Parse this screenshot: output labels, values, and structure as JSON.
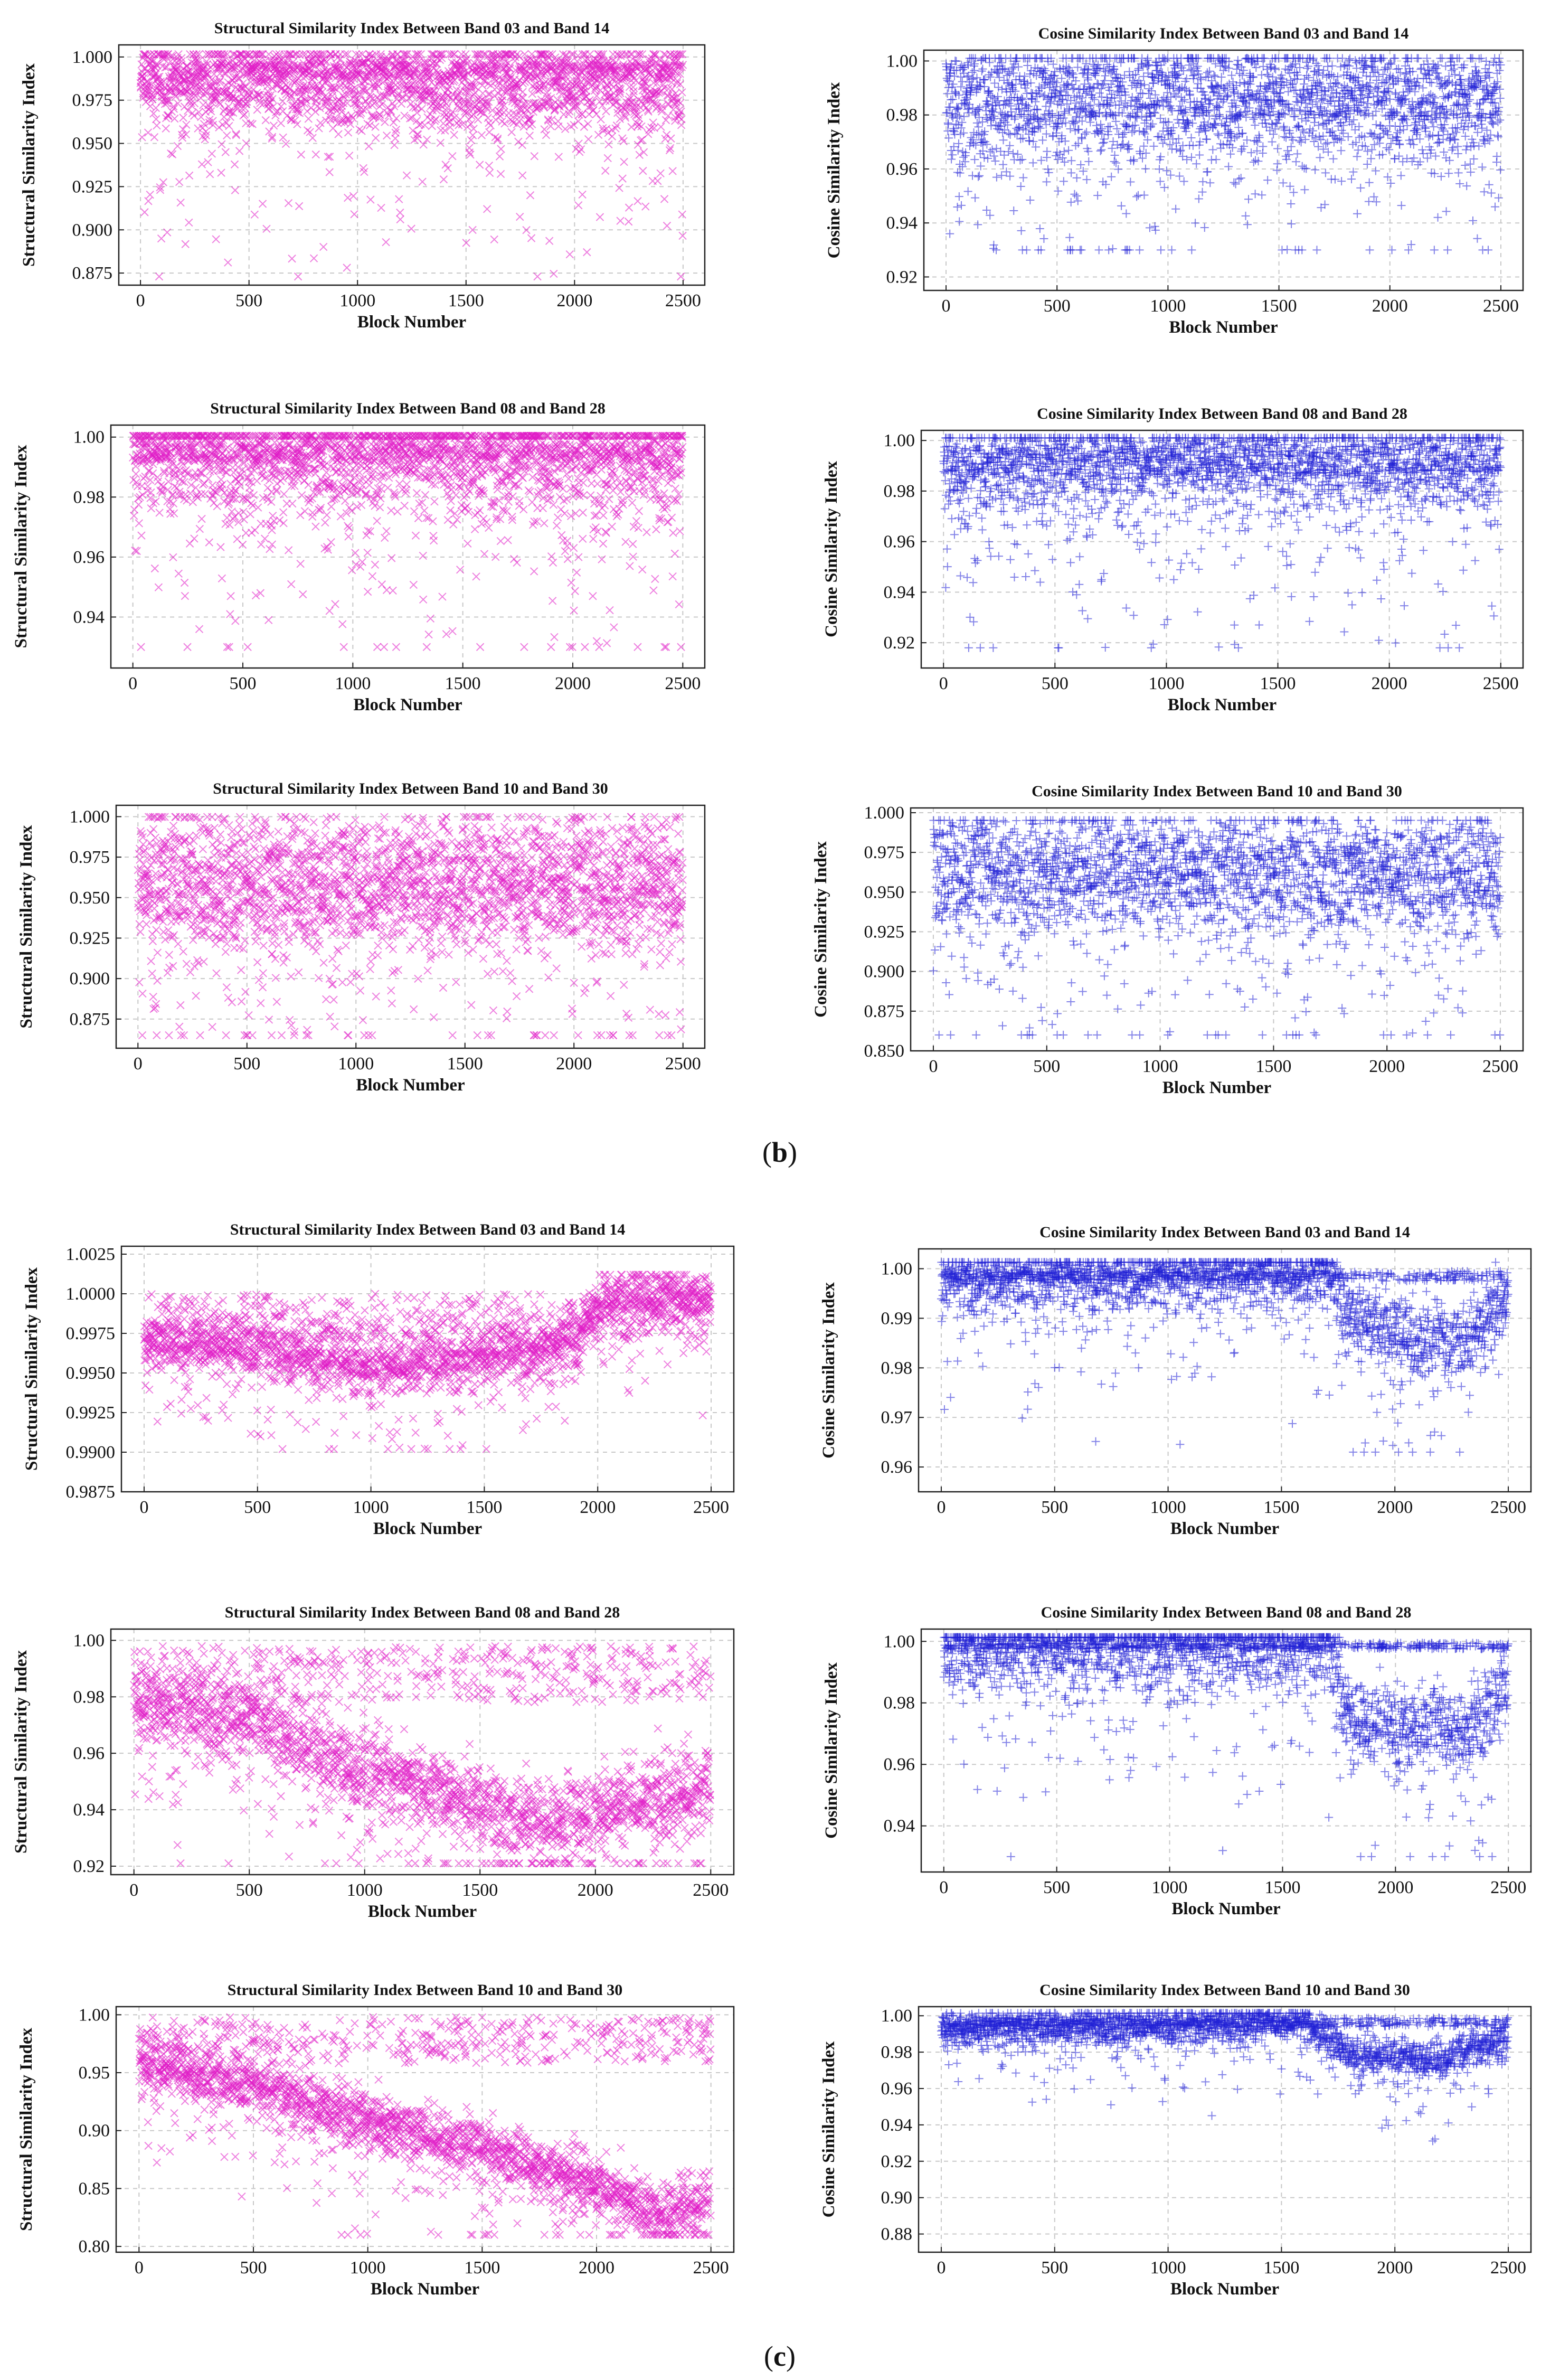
{
  "captions": {
    "b": "b",
    "c": "c"
  },
  "chart_data": [
    {
      "id": "b-ssim-03-14",
      "type": "scatter",
      "marker": "x",
      "color": "#e01cc6",
      "title": "Structural Similarity Index Between Band 03 and Band 14",
      "xlabel": "Block Number",
      "ylabel": "Structural Similarity Index",
      "xlim": [
        -100,
        2600
      ],
      "ylim": [
        0.868,
        1.007
      ],
      "xticks": [
        0,
        500,
        1000,
        1500,
        2000,
        2500
      ],
      "xtick_labels": [
        "0",
        "500",
        "1000",
        "1500",
        "2000",
        "2500"
      ],
      "yticks": [
        0.875,
        0.9,
        0.925,
        0.95,
        0.975,
        1.0
      ],
      "ytick_labels": [
        "0.875",
        "0.900",
        "0.925",
        "0.950",
        "0.975",
        "1.000"
      ],
      "grid": true,
      "n_points": 2500,
      "trend": [
        [
          0,
          0.985
        ],
        [
          2500,
          0.982
        ]
      ],
      "spread": 0.04,
      "core_top": 0.998,
      "core_band": 0.01,
      "outlier_min": 0.873
    },
    {
      "id": "b-cos-03-14",
      "type": "scatter",
      "marker": "+",
      "color": "#1f1fd6",
      "title": "Cosine Similarity Index Between Band 03 and Band 14",
      "xlabel": "Block Number",
      "ylabel": "Cosine Similarity Index",
      "xlim": [
        -100,
        2600
      ],
      "ylim": [
        0.915,
        1.004
      ],
      "xticks": [
        0,
        500,
        1000,
        1500,
        2000,
        2500
      ],
      "xtick_labels": [
        "0",
        "500",
        "1000",
        "1500",
        "2000",
        "2500"
      ],
      "yticks": [
        0.92,
        0.94,
        0.96,
        0.98,
        1.0
      ],
      "ytick_labels": [
        "0.92",
        "0.94",
        "0.96",
        "0.98",
        "1.00"
      ],
      "grid": true,
      "n_points": 2500,
      "trend": [
        [
          0,
          0.985
        ],
        [
          2500,
          0.984
        ]
      ],
      "spread": 0.035,
      "core_top": 0.999,
      "core_band": 0.02,
      "outlier_min": 0.93
    },
    {
      "id": "b-ssim-08-28",
      "type": "scatter",
      "marker": "x",
      "color": "#e01cc6",
      "title": "Structural Similarity Index Between Band 08 and Band 28",
      "xlabel": "Block Number",
      "ylabel": "Structural Similarity Index",
      "xlim": [
        -100,
        2600
      ],
      "ylim": [
        0.923,
        1.004
      ],
      "xticks": [
        0,
        500,
        1000,
        1500,
        2000,
        2500
      ],
      "xtick_labels": [
        "0",
        "500",
        "1000",
        "1500",
        "2000",
        "2500"
      ],
      "yticks": [
        0.94,
        0.96,
        0.98,
        1.0
      ],
      "ytick_labels": [
        "0.94",
        "0.96",
        "0.98",
        "1.00"
      ],
      "grid": true,
      "n_points": 2500,
      "trend": [
        [
          0,
          0.993
        ],
        [
          2500,
          0.993
        ]
      ],
      "spread": 0.03,
      "core_top": 0.998,
      "core_band": 0.006,
      "outlier_min": 0.93
    },
    {
      "id": "b-cos-08-28",
      "type": "scatter",
      "marker": "+",
      "color": "#1f1fd6",
      "title": "Cosine Similarity Index Between Band 08 and Band 28",
      "xlabel": "Block Number",
      "ylabel": "Cosine Similarity Index",
      "xlim": [
        -100,
        2600
      ],
      "ylim": [
        0.91,
        1.004
      ],
      "xticks": [
        0,
        500,
        1000,
        1500,
        2000,
        2500
      ],
      "xtick_labels": [
        "0",
        "500",
        "1000",
        "1500",
        "2000",
        "2500"
      ],
      "yticks": [
        0.92,
        0.94,
        0.96,
        0.98,
        1.0
      ],
      "ytick_labels": [
        "0.92",
        "0.94",
        "0.96",
        "0.98",
        "1.00"
      ],
      "grid": true,
      "n_points": 2500,
      "trend": [
        [
          0,
          0.99
        ],
        [
          2500,
          0.99
        ]
      ],
      "spread": 0.03,
      "core_top": 0.999,
      "core_band": 0.012,
      "outlier_min": 0.918
    },
    {
      "id": "b-ssim-10-30",
      "type": "scatter",
      "marker": "x",
      "color": "#e01cc6",
      "title": "Structural Similarity Index Between Band 10 and Band 30",
      "xlabel": "Block Number",
      "ylabel": "Structural Similarity Index",
      "xlim": [
        -100,
        2600
      ],
      "ylim": [
        0.857,
        1.007
      ],
      "xticks": [
        0,
        500,
        1000,
        1500,
        2000,
        2500
      ],
      "xtick_labels": [
        "0",
        "500",
        "1000",
        "1500",
        "2000",
        "2500"
      ],
      "yticks": [
        0.875,
        0.9,
        0.925,
        0.95,
        0.975,
        1.0
      ],
      "ytick_labels": [
        "0.875",
        "0.900",
        "0.925",
        "0.950",
        "0.975",
        "1.000"
      ],
      "grid": true,
      "n_points": 2500,
      "trend": [
        [
          0,
          0.96
        ],
        [
          2500,
          0.96
        ]
      ],
      "spread": 0.06,
      "core_top": 0.995,
      "core_band": 0.07,
      "outlier_min": 0.865
    },
    {
      "id": "b-cos-10-30",
      "type": "scatter",
      "marker": "+",
      "color": "#1f1fd6",
      "title": "Cosine Similarity Index Between Band 10 and Band 30",
      "xlabel": "Block Number",
      "ylabel": "Cosine Similarity Index",
      "xlim": [
        -100,
        2600
      ],
      "ylim": [
        0.85,
        1.003
      ],
      "xticks": [
        0,
        500,
        1000,
        1500,
        2000,
        2500
      ],
      "xtick_labels": [
        "0",
        "500",
        "1000",
        "1500",
        "2000",
        "2500"
      ],
      "yticks": [
        0.85,
        0.875,
        0.9,
        0.925,
        0.95,
        0.975,
        1.0
      ],
      "ytick_labels": [
        "0.850",
        "0.875",
        "0.900",
        "0.925",
        "0.950",
        "0.975",
        "1.000"
      ],
      "grid": true,
      "n_points": 2500,
      "trend": [
        [
          0,
          0.965
        ],
        [
          2500,
          0.962
        ]
      ],
      "spread": 0.06,
      "core_top": 0.99,
      "core_band": 0.06,
      "outlier_min": 0.86
    },
    {
      "id": "c-ssim-03-14",
      "type": "scatter",
      "marker": "x",
      "color": "#e01cc6",
      "title": "Structural Similarity Index Between Band 03 and Band 14",
      "xlabel": "Block Number",
      "ylabel": "Structural Similarity Index",
      "xlim": [
        -100,
        2600
      ],
      "ylim": [
        0.9875,
        1.003
      ],
      "xticks": [
        0,
        500,
        1000,
        1500,
        2000,
        2500
      ],
      "xtick_labels": [
        "0",
        "500",
        "1000",
        "1500",
        "2000",
        "2500"
      ],
      "yticks": [
        0.9875,
        0.99,
        0.9925,
        0.995,
        0.9975,
        1.0,
        1.0025
      ],
      "ytick_labels": [
        "0.9875",
        "0.9900",
        "0.9925",
        "0.9950",
        "0.9975",
        "1.0000",
        "1.0025"
      ],
      "grid": true,
      "n_points": 2500,
      "trend": [
        [
          0,
          0.9971
        ],
        [
          400,
          0.9967
        ],
        [
          1000,
          0.9955
        ],
        [
          1500,
          0.996
        ],
        [
          1900,
          0.9972
        ],
        [
          2050,
          0.9999
        ],
        [
          2500,
          0.9999
        ]
      ],
      "spread": 0.0025,
      "core_top": 1.0,
      "core_band": 0.003,
      "outlier_min": 0.9902
    },
    {
      "id": "c-cos-03-14",
      "type": "scatter",
      "marker": "+",
      "color": "#1f1fd6",
      "title": "Cosine Similarity Index Between Band 03 and Band 14",
      "xlabel": "Block Number",
      "ylabel": "Cosine Similarity Index",
      "xlim": [
        -100,
        2600
      ],
      "ylim": [
        0.955,
        1.004
      ],
      "xticks": [
        0,
        500,
        1000,
        1500,
        2000,
        2500
      ],
      "xtick_labels": [
        "0",
        "500",
        "1000",
        "1500",
        "2000",
        "2500"
      ],
      "yticks": [
        0.96,
        0.97,
        0.98,
        0.99,
        1.0
      ],
      "ytick_labels": [
        "0.96",
        "0.97",
        "0.98",
        "0.99",
        "1.00"
      ],
      "grid": true,
      "n_points": 2500,
      "trend": [
        [
          0,
          0.998
        ],
        [
          1700,
          0.999
        ],
        [
          1800,
          0.99
        ],
        [
          2300,
          0.985
        ],
        [
          2500,
          0.995
        ]
      ],
      "spread": 0.01,
      "core_top": 0.9995,
      "core_band": 0.002,
      "outlier_min": 0.963
    },
    {
      "id": "c-ssim-08-28",
      "type": "scatter",
      "marker": "x",
      "color": "#e01cc6",
      "title": "Structural Similarity Index Between Band 08 and Band 28",
      "xlabel": "Block Number",
      "ylabel": "Structural Similarity Index",
      "xlim": [
        -100,
        2600
      ],
      "ylim": [
        0.917,
        1.004
      ],
      "xticks": [
        0,
        500,
        1000,
        1500,
        2000,
        2500
      ],
      "xtick_labels": [
        "0",
        "500",
        "1000",
        "1500",
        "2000",
        "2500"
      ],
      "yticks": [
        0.92,
        0.94,
        0.96,
        0.98,
        1.0
      ],
      "ytick_labels": [
        "0.92",
        "0.94",
        "0.96",
        "0.98",
        "1.00"
      ],
      "grid": true,
      "n_points": 2500,
      "trend": [
        [
          0,
          0.978
        ],
        [
          500,
          0.972
        ],
        [
          1000,
          0.955
        ],
        [
          1500,
          0.943
        ],
        [
          1800,
          0.935
        ],
        [
          2000,
          0.94
        ],
        [
          2500,
          0.948
        ]
      ],
      "spread": 0.02,
      "core_top": 0.998,
      "core_band": 0.02,
      "outlier_min": 0.921
    },
    {
      "id": "c-cos-08-28",
      "type": "scatter",
      "marker": "+",
      "color": "#1f1fd6",
      "title": "Cosine Similarity Index Between Band 08 and Band 28",
      "xlabel": "Block Number",
      "ylabel": "Cosine Similarity Index",
      "xlim": [
        -100,
        2600
      ],
      "ylim": [
        0.925,
        1.004
      ],
      "xticks": [
        0,
        500,
        1000,
        1500,
        2000,
        2500
      ],
      "xtick_labels": [
        "0",
        "500",
        "1000",
        "1500",
        "2000",
        "2500"
      ],
      "yticks": [
        0.94,
        0.96,
        0.98,
        1.0
      ],
      "ytick_labels": [
        "0.94",
        "0.96",
        "0.98",
        "1.00"
      ],
      "grid": true,
      "n_points": 2500,
      "trend": [
        [
          0,
          0.998
        ],
        [
          1700,
          0.999
        ],
        [
          1800,
          0.975
        ],
        [
          2300,
          0.97
        ],
        [
          2500,
          0.985
        ]
      ],
      "spread": 0.02,
      "core_top": 0.9995,
      "core_band": 0.002,
      "outlier_min": 0.93
    },
    {
      "id": "c-ssim-10-30",
      "type": "scatter",
      "marker": "x",
      "color": "#e01cc6",
      "title": "Structural Similarity Index Between Band 10 and Band 30",
      "xlabel": "Block Number",
      "ylabel": "Structural Similarity Index",
      "xlim": [
        -100,
        2600
      ],
      "ylim": [
        0.795,
        1.007
      ],
      "xticks": [
        0,
        500,
        1000,
        1500,
        2000,
        2500
      ],
      "xtick_labels": [
        "0",
        "500",
        "1000",
        "1500",
        "2000",
        "2500"
      ],
      "yticks": [
        0.8,
        0.85,
        0.9,
        0.95,
        1.0
      ],
      "ytick_labels": [
        "0.80",
        "0.85",
        "0.90",
        "0.95",
        "1.00"
      ],
      "grid": true,
      "n_points": 2500,
      "trend": [
        [
          0,
          0.96
        ],
        [
          500,
          0.94
        ],
        [
          1000,
          0.91
        ],
        [
          1500,
          0.885
        ],
        [
          2000,
          0.855
        ],
        [
          2250,
          0.83
        ],
        [
          2500,
          0.84
        ]
      ],
      "spread": 0.035,
      "core_top": 0.998,
      "core_band": 0.04,
      "outlier_min": 0.81
    },
    {
      "id": "c-cos-10-30",
      "type": "scatter",
      "marker": "+",
      "color": "#1f1fd6",
      "title": "Cosine Similarity Index Between Band 10 and Band 30",
      "xlabel": "Block Number",
      "ylabel": "Cosine Similarity Index",
      "xlim": [
        -100,
        2600
      ],
      "ylim": [
        0.87,
        1.005
      ],
      "xticks": [
        0,
        500,
        1000,
        1500,
        2000,
        2500
      ],
      "xtick_labels": [
        "0",
        "500",
        "1000",
        "1500",
        "2000",
        "2500"
      ],
      "yticks": [
        0.88,
        0.9,
        0.92,
        0.94,
        0.96,
        0.98,
        1.0
      ],
      "ytick_labels": [
        "0.88",
        "0.90",
        "0.92",
        "0.94",
        "0.96",
        "0.98",
        "1.00"
      ],
      "grid": true,
      "n_points": 2500,
      "trend": [
        [
          0,
          0.992
        ],
        [
          1600,
          0.997
        ],
        [
          1800,
          0.98
        ],
        [
          2200,
          0.975
        ],
        [
          2500,
          0.99
        ]
      ],
      "spread": 0.015,
      "core_top": 0.999,
      "core_band": 0.005,
      "outlier_min": 0.878
    }
  ]
}
